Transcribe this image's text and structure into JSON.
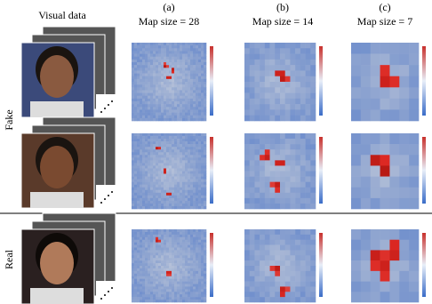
{
  "header": {
    "visual_data": "Visual data",
    "columns": [
      {
        "label": "(a)",
        "title": "Map size = 28"
      },
      {
        "label": "(b)",
        "title": "Map size = 14"
      },
      {
        "label": "(c)",
        "title": "Map size = 7"
      }
    ]
  },
  "rows": [
    "Fake",
    "Real"
  ]
}
